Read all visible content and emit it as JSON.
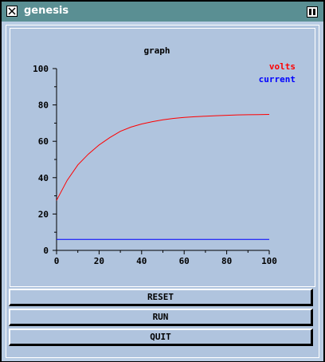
{
  "window": {
    "title": "genesis"
  },
  "buttons": {
    "reset": "RESET",
    "run": "RUN",
    "quit": "QUIT"
  },
  "chart_data": {
    "type": "line",
    "title": "graph",
    "xlabel": "",
    "ylabel": "",
    "xlim": [
      0,
      100
    ],
    "ylim": [
      0,
      100
    ],
    "xticks": [
      "0",
      "20",
      "40",
      "60",
      "80",
      "100"
    ],
    "yticks": [
      "0",
      "20",
      "40",
      "60",
      "80",
      "100"
    ],
    "legend_placement": "top-right",
    "series": [
      {
        "name": "volts",
        "color": "#ff0000",
        "x": [
          0,
          5,
          10,
          15,
          20,
          25,
          30,
          35,
          40,
          45,
          50,
          55,
          60,
          65,
          70,
          75,
          80,
          85,
          90,
          95,
          100
        ],
        "y": [
          27.5,
          38.5,
          47,
          53,
          58,
          62,
          65.5,
          67.8,
          69.5,
          70.8,
          71.8,
          72.6,
          73.1,
          73.5,
          73.8,
          74.1,
          74.3,
          74.5,
          74.6,
          74.7,
          74.8
        ]
      },
      {
        "name": "current",
        "color": "#0000ff",
        "x": [
          0,
          100
        ],
        "y": [
          6,
          6
        ]
      }
    ]
  }
}
